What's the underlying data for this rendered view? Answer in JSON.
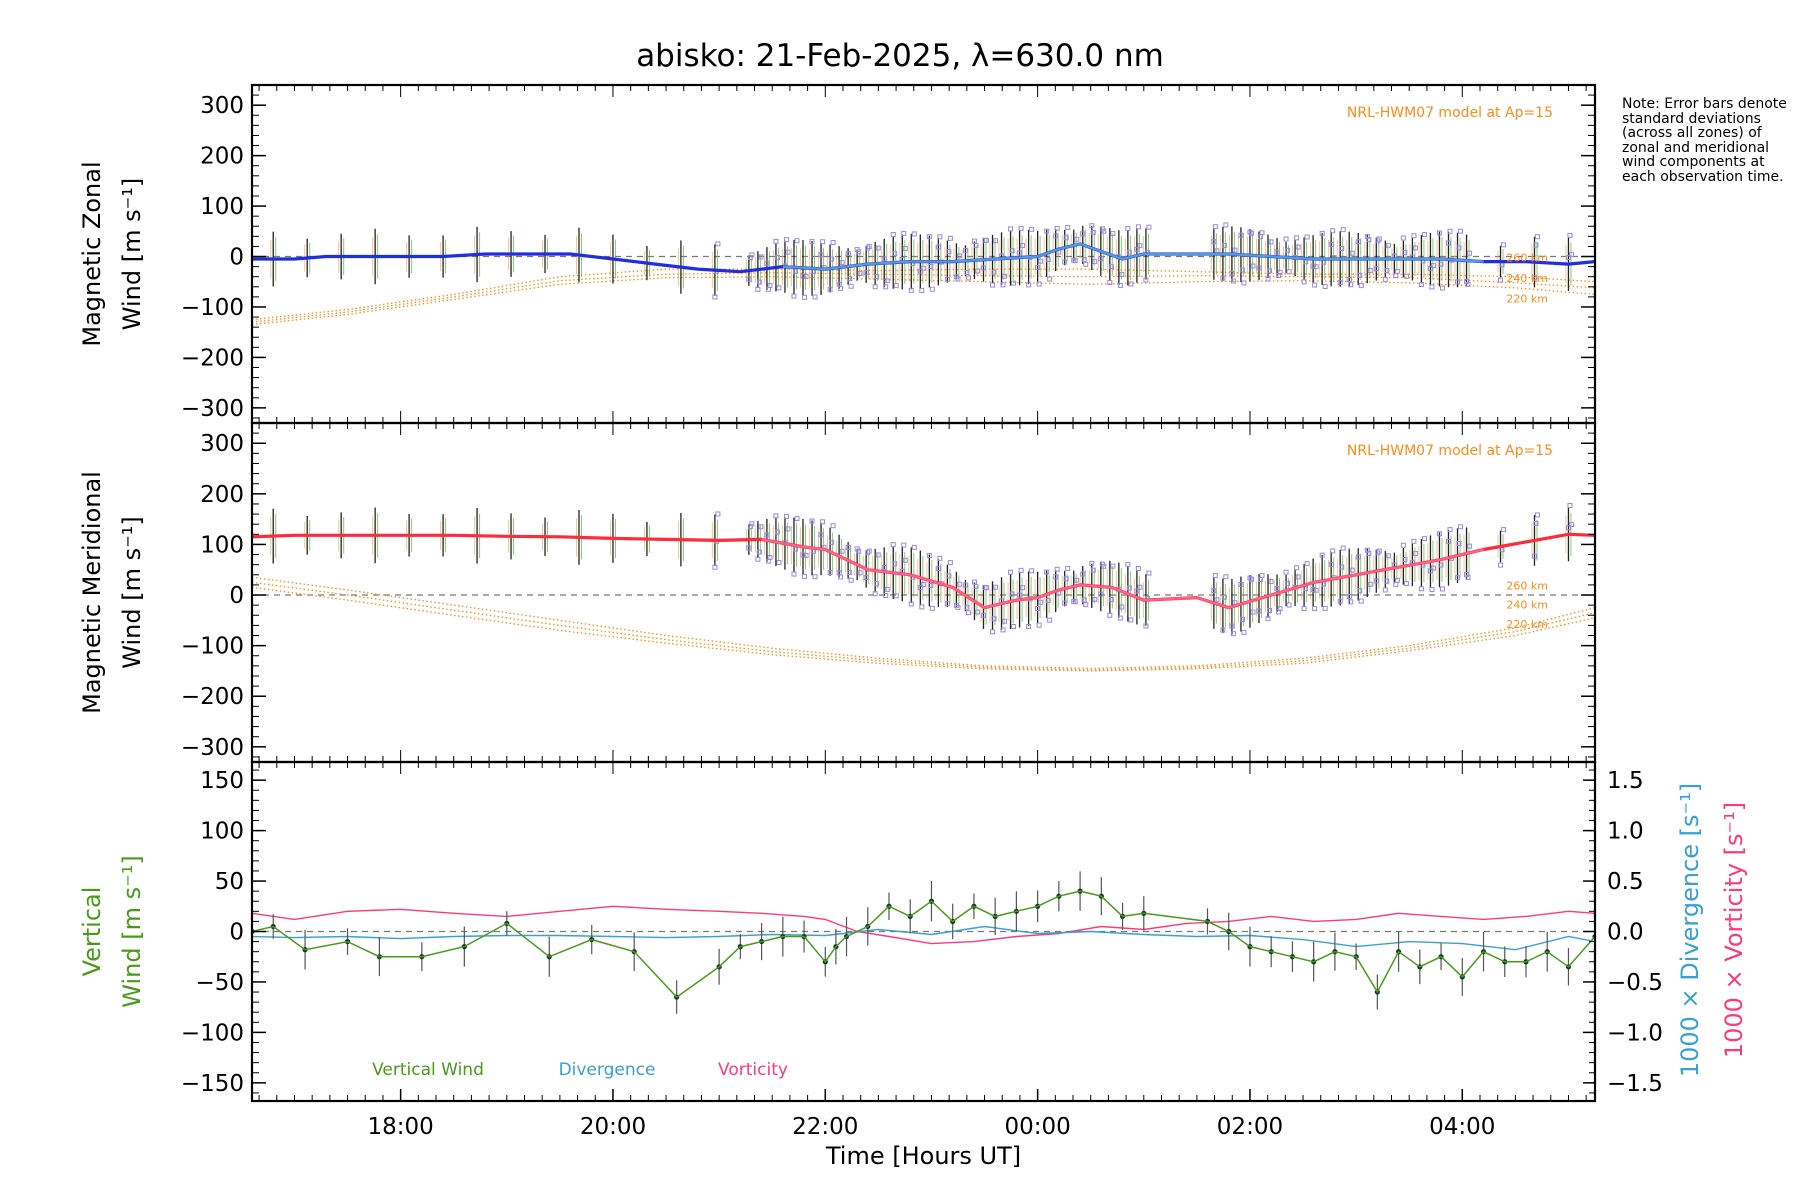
{
  "title": "abisko: 21-Feb-2025, λ=630.0 nm",
  "note": "Note: Error bars denote standard deviations (across all zones) of zonal and meridional wind components at each observation time.",
  "colors": {
    "zonal": "#1f2fe0",
    "zonal_inner": "#5aaee0",
    "meridional": "#ff2a3a",
    "meridional_inner": "#ff6a9a",
    "model": "#ff8c1a",
    "vertical": "#4a9a1a",
    "divergence": "#3aa0d0",
    "vorticity": "#ff3a7a",
    "errbar": "#222222",
    "scatter": "#9a8adc"
  },
  "chart_data": [
    {
      "type": "line",
      "id": "zonal",
      "ylabel_line1": "Magnetic Zonal",
      "ylabel_line2": "Wind [m s⁻¹]",
      "ylim": [
        -330,
        340
      ],
      "yticks": [
        300,
        200,
        100,
        0,
        -100,
        -200,
        -300
      ],
      "model_label": "NRL-HWM07 model at Ap=15",
      "model_altitudes": [
        "260 km",
        "240 km",
        "220 km"
      ],
      "xlim": [
        16.6,
        29.25
      ],
      "x": [
        16.6,
        16.8,
        17.0,
        17.3,
        17.6,
        18.0,
        18.4,
        18.8,
        19.2,
        19.6,
        20.0,
        20.4,
        20.8,
        21.2,
        21.6,
        22.0,
        22.4,
        22.8,
        23.2,
        23.6,
        24.0,
        24.2,
        24.4,
        24.6,
        24.8,
        25.0,
        25.5,
        25.8,
        26.2,
        26.6,
        27.0,
        27.4,
        27.8,
        28.2,
        28.6,
        29.0,
        29.25
      ],
      "values": [
        -5,
        -5,
        -5,
        0,
        0,
        0,
        0,
        5,
        5,
        5,
        -5,
        -15,
        -25,
        -30,
        -20,
        -25,
        -15,
        -10,
        -10,
        -5,
        0,
        15,
        25,
        10,
        -5,
        5,
        5,
        5,
        0,
        -5,
        -5,
        -5,
        -5,
        -10,
        -10,
        -15,
        -10
      ],
      "model_series": [
        {
          "name": "260 km",
          "x": [
            16.6,
            17.5,
            18.5,
            19.5,
            20.5,
            21.5,
            22.5,
            23.5,
            24.5,
            25.5,
            26.5,
            27.5,
            28.5,
            29.25
          ],
          "values": [
            -125,
            -105,
            -75,
            -40,
            -25,
            -25,
            -28,
            -25,
            -25,
            -30,
            -35,
            -35,
            -40,
            -50
          ]
        },
        {
          "name": "240 km",
          "x": [
            16.6,
            17.5,
            18.5,
            19.5,
            20.5,
            21.5,
            22.5,
            23.5,
            24.5,
            25.5,
            26.5,
            27.5,
            28.5,
            29.25
          ],
          "values": [
            -130,
            -110,
            -80,
            -48,
            -35,
            -32,
            -35,
            -38,
            -40,
            -38,
            -40,
            -42,
            -52,
            -62
          ]
        },
        {
          "name": "220 km",
          "x": [
            16.6,
            17.5,
            18.5,
            19.5,
            20.5,
            21.5,
            22.5,
            23.5,
            24.5,
            25.5,
            26.5,
            27.5,
            28.5,
            29.25
          ],
          "values": [
            -135,
            -115,
            -85,
            -55,
            -42,
            -40,
            -45,
            -50,
            -55,
            -50,
            -48,
            -52,
            -62,
            -75
          ]
        }
      ]
    },
    {
      "type": "line",
      "id": "meridional",
      "ylabel_line1": "Magnetic Meridional",
      "ylabel_line2": "Wind [m s⁻¹]",
      "ylim": [
        -330,
        340
      ],
      "yticks": [
        300,
        200,
        100,
        0,
        -100,
        -200,
        -300
      ],
      "model_label": "NRL-HWM07 model at Ap=15",
      "model_altitudes": [
        "260 km",
        "240 km",
        "220 km"
      ],
      "xlim": [
        16.6,
        29.25
      ],
      "x": [
        16.6,
        17.0,
        17.5,
        18.0,
        18.5,
        19.0,
        19.5,
        20.0,
        20.5,
        21.0,
        21.4,
        21.8,
        22.0,
        22.4,
        22.8,
        23.2,
        23.5,
        23.8,
        24.0,
        24.2,
        24.4,
        24.7,
        25.0,
        25.5,
        25.8,
        26.2,
        26.6,
        27.0,
        27.4,
        27.8,
        28.2,
        28.6,
        29.0,
        29.25
      ],
      "values": [
        115,
        118,
        118,
        118,
        118,
        116,
        115,
        112,
        110,
        108,
        110,
        95,
        90,
        50,
        40,
        15,
        -25,
        -10,
        -5,
        10,
        20,
        15,
        -10,
        -5,
        -25,
        0,
        25,
        40,
        55,
        70,
        90,
        105,
        120,
        118
      ],
      "model_series": [
        {
          "name": "260 km",
          "x": [
            16.6,
            17.5,
            18.5,
            19.5,
            20.5,
            21.5,
            22.5,
            23.5,
            24.5,
            25.5,
            26.5,
            27.5,
            28.5,
            29.25
          ],
          "values": [
            35,
            10,
            -20,
            -50,
            -80,
            -105,
            -125,
            -140,
            -145,
            -140,
            -125,
            -100,
            -65,
            -25
          ]
        },
        {
          "name": "240 km",
          "x": [
            16.6,
            17.5,
            18.5,
            19.5,
            20.5,
            21.5,
            22.5,
            23.5,
            24.5,
            25.5,
            26.5,
            27.5,
            28.5,
            29.25
          ],
          "values": [
            25,
            0,
            -30,
            -60,
            -88,
            -112,
            -130,
            -143,
            -148,
            -143,
            -130,
            -105,
            -72,
            -35
          ]
        },
        {
          "name": "220 km",
          "x": [
            16.6,
            17.5,
            18.5,
            19.5,
            20.5,
            21.5,
            22.5,
            23.5,
            24.5,
            25.5,
            26.5,
            27.5,
            28.5,
            29.25
          ],
          "values": [
            15,
            -10,
            -40,
            -70,
            -95,
            -118,
            -135,
            -146,
            -150,
            -146,
            -135,
            -110,
            -80,
            -45
          ]
        }
      ]
    },
    {
      "type": "line",
      "id": "vertical",
      "ylabel_line1": "Vertical",
      "ylabel_line2": "Wind [m s⁻¹]",
      "ylim": [
        -168,
        168
      ],
      "yticks": [
        150,
        100,
        50,
        0,
        -50,
        -100,
        -150
      ],
      "y2label_div": "1000 × Divergence [s⁻¹]",
      "y2label_vor": "1000 × Vorticity [s⁻¹]",
      "y2lim": [
        -1.68,
        1.68
      ],
      "y2ticks": [
        "1.5",
        "1.0",
        "0.5",
        "0.0",
        "−0.5",
        "−1.0",
        "−1.5"
      ],
      "y2tick_values": [
        1.5,
        1.0,
        0.5,
        0.0,
        -0.5,
        -1.0,
        -1.5
      ],
      "legend": [
        "Vertical Wind",
        "Divergence",
        "Vorticity"
      ],
      "xlim": [
        16.6,
        29.25
      ],
      "xticks": [
        18,
        20,
        22,
        24,
        26,
        28
      ],
      "xticklabels": [
        "18:00",
        "20:00",
        "22:00",
        "00:00",
        "02:00",
        "04:00"
      ],
      "xlabel": "Time [Hours UT]",
      "series": [
        {
          "name": "Vertical Wind",
          "x": [
            16.6,
            16.8,
            17.1,
            17.5,
            17.8,
            18.2,
            18.6,
            19.0,
            19.4,
            19.8,
            20.2,
            20.6,
            21.0,
            21.2,
            21.4,
            21.6,
            21.8,
            22.0,
            22.1,
            22.2,
            22.4,
            22.6,
            22.8,
            23.0,
            23.2,
            23.4,
            23.6,
            23.8,
            24.0,
            24.2,
            24.4,
            24.6,
            24.8,
            25.0,
            25.6,
            25.8,
            26.0,
            26.2,
            26.4,
            26.6,
            26.8,
            27.0,
            27.2,
            27.4,
            27.6,
            27.8,
            28.0,
            28.2,
            28.4,
            28.6,
            28.8,
            29.0,
            29.25
          ],
          "values": [
            0,
            5,
            -18,
            -10,
            -25,
            -25,
            -15,
            8,
            -25,
            -8,
            -20,
            -65,
            -35,
            -15,
            -10,
            -5,
            -5,
            -30,
            -15,
            -5,
            5,
            25,
            15,
            30,
            10,
            25,
            15,
            20,
            25,
            35,
            40,
            35,
            15,
            18,
            10,
            0,
            -15,
            -20,
            -25,
            -30,
            -20,
            -25,
            -60,
            -20,
            -35,
            -25,
            -45,
            -20,
            -30,
            -30,
            -20,
            -35,
            -5
          ]
        },
        {
          "name": "Divergence",
          "x": [
            16.6,
            17.0,
            17.5,
            18.0,
            18.5,
            19.0,
            19.5,
            20.0,
            20.5,
            21.0,
            21.5,
            22.0,
            22.5,
            23.0,
            23.5,
            24.0,
            24.5,
            25.0,
            25.5,
            26.0,
            26.5,
            27.0,
            27.5,
            28.0,
            28.5,
            29.0,
            29.25
          ],
          "values": [
            -0.05,
            -0.06,
            -0.05,
            -0.07,
            -0.05,
            -0.04,
            -0.04,
            -0.05,
            -0.06,
            -0.05,
            -0.03,
            -0.04,
            0.02,
            -0.03,
            0.05,
            -0.02,
            0.0,
            -0.03,
            -0.05,
            -0.04,
            -0.08,
            -0.15,
            -0.1,
            -0.12,
            -0.18,
            -0.05,
            -0.1
          ]
        },
        {
          "name": "Vorticity",
          "x": [
            16.6,
            17.0,
            17.5,
            18.0,
            18.5,
            19.0,
            19.5,
            20.0,
            20.5,
            21.0,
            21.4,
            21.8,
            22.0,
            22.3,
            22.6,
            23.0,
            23.4,
            23.8,
            24.2,
            24.6,
            25.0,
            25.4,
            25.8,
            26.2,
            26.6,
            27.0,
            27.4,
            27.8,
            28.2,
            28.6,
            29.0,
            29.25
          ],
          "values": [
            0.18,
            0.12,
            0.2,
            0.22,
            0.18,
            0.15,
            0.2,
            0.25,
            0.22,
            0.2,
            0.18,
            0.15,
            0.12,
            0.0,
            -0.05,
            -0.12,
            -0.1,
            -0.05,
            -0.02,
            0.05,
            0.02,
            0.08,
            0.1,
            0.15,
            0.1,
            0.12,
            0.18,
            0.15,
            0.12,
            0.15,
            0.2,
            0.18
          ]
        }
      ]
    }
  ]
}
